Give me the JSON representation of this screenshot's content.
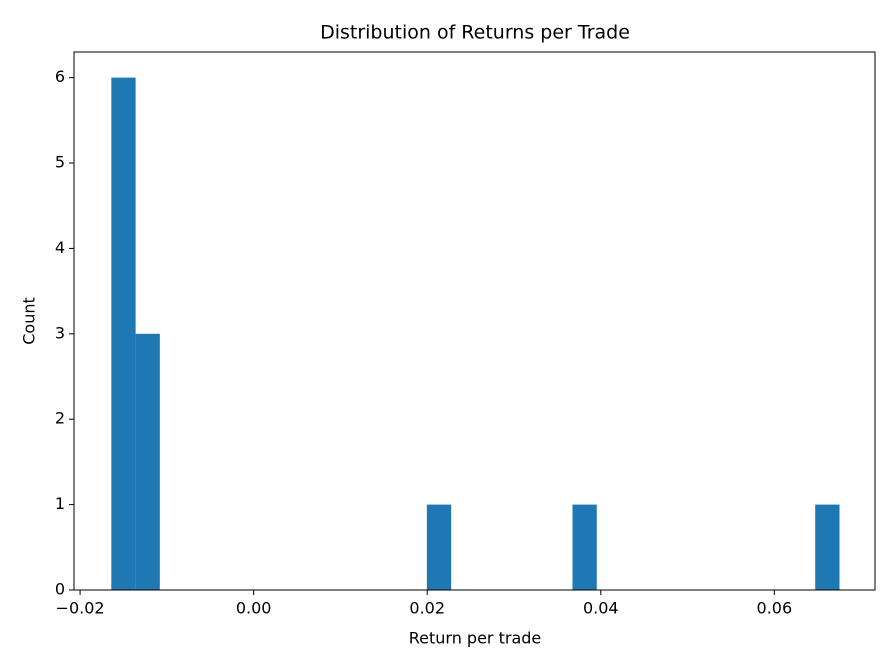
{
  "chart_data": {
    "type": "histogram",
    "title": "Distribution of Returns per Trade",
    "x_label": "Return per trade",
    "y_label": "Count",
    "bins": [
      -0.0164,
      -0.0136,
      -0.01081,
      -0.00801,
      -0.00521,
      -0.00242,
      0.00038,
      0.00318,
      0.00598,
      0.00877,
      0.01157,
      0.01437,
      0.01716,
      0.01996,
      0.02276,
      0.02556,
      0.02835,
      0.03115,
      0.03395,
      0.03674,
      0.03954,
      0.04234,
      0.04513,
      0.04793,
      0.05073,
      0.05353,
      0.05632,
      0.05912,
      0.06192,
      0.06471,
      0.06751
    ],
    "values": [
      6,
      3,
      0,
      0,
      0,
      0,
      0,
      0,
      0,
      0,
      0,
      0,
      0,
      1,
      0,
      0,
      0,
      0,
      0,
      1,
      0,
      0,
      0,
      0,
      0,
      0,
      0,
      0,
      0,
      1
    ],
    "color": "#1f77b4",
    "xlim": [
      -0.0207,
      0.0716
    ],
    "ylim": [
      0,
      6.3
    ],
    "xticks": [
      {
        "value": -0.02,
        "label": "−0.02"
      },
      {
        "value": 0,
        "label": "0.00"
      },
      0.02,
      0.04,
      0.06
    ],
    "yticks": [
      0,
      1,
      2,
      3,
      4,
      5,
      6
    ]
  }
}
